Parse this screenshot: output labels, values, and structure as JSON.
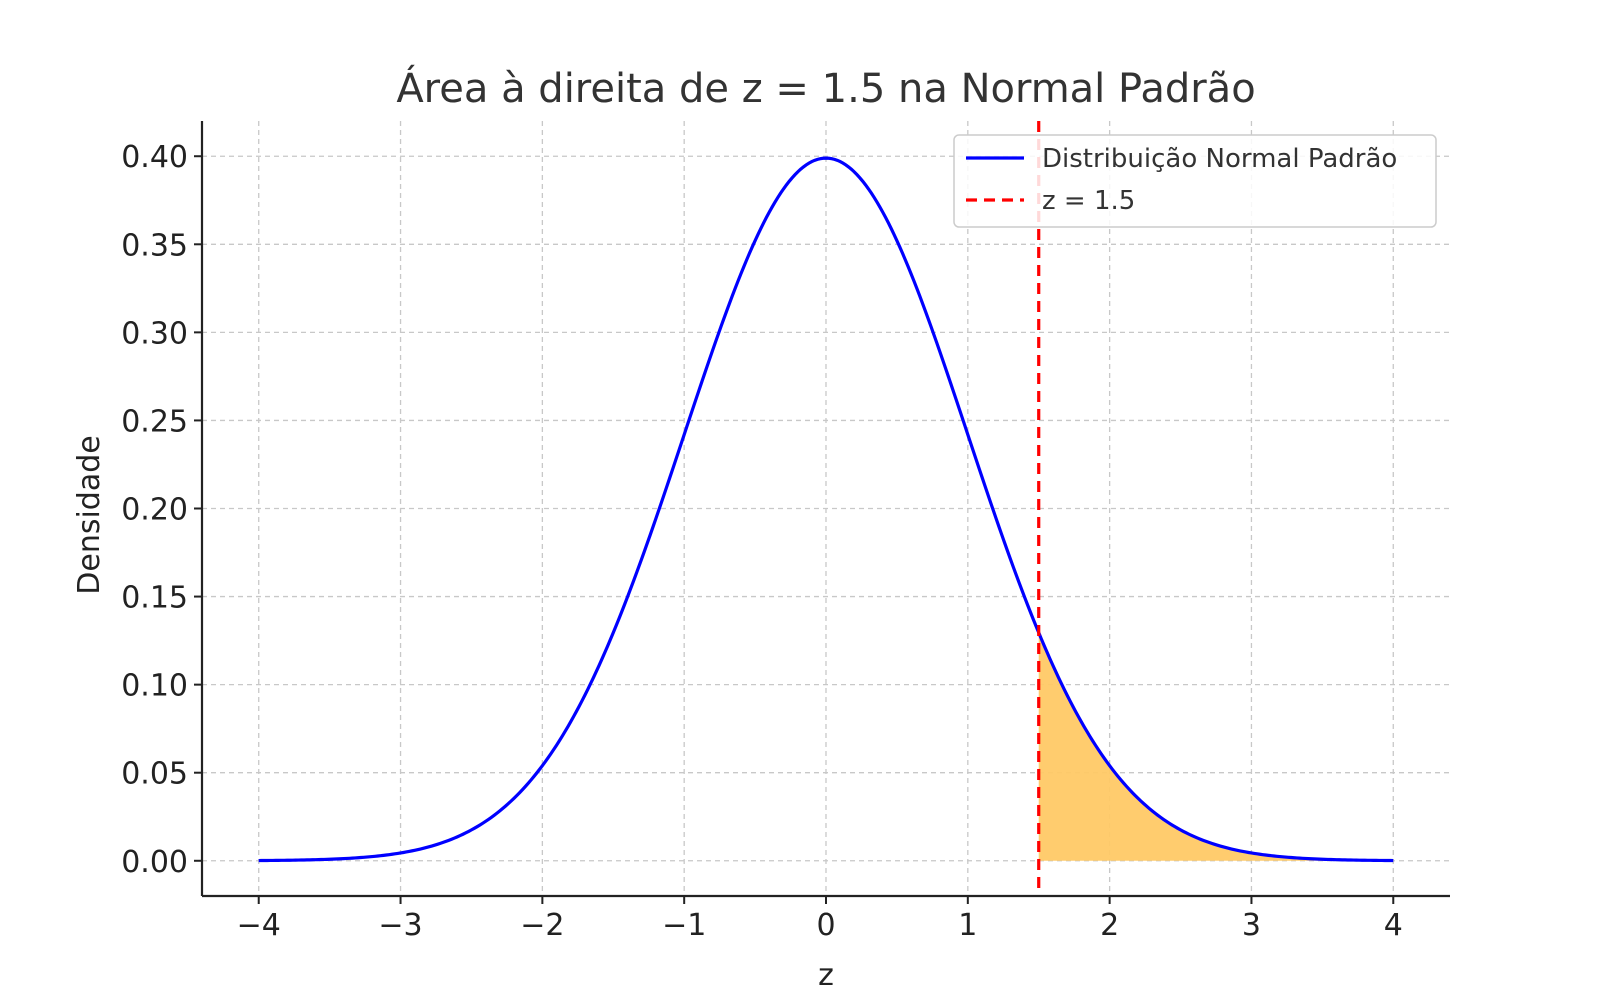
{
  "chart_data": {
    "type": "line",
    "title": "Área à direita de z = 1.5 na Normal Padrão",
    "xlabel": "z",
    "ylabel": "Densidade",
    "xlim": [
      -4.4,
      4.4
    ],
    "ylim": [
      -0.02,
      0.42
    ],
    "x_ticks": [
      -4,
      -3,
      -2,
      -1,
      0,
      1,
      2,
      3,
      4
    ],
    "x_tick_labels": [
      "−4",
      "−3",
      "−2",
      "−1",
      "0",
      "1",
      "2",
      "3",
      "4"
    ],
    "y_ticks": [
      0.0,
      0.05,
      0.1,
      0.15,
      0.2,
      0.25,
      0.3,
      0.35,
      0.4
    ],
    "y_tick_labels": [
      "0.00",
      "0.05",
      "0.10",
      "0.15",
      "0.20",
      "0.25",
      "0.30",
      "0.35",
      "0.40"
    ],
    "grid": true,
    "legend_position": "top-right",
    "series": [
      {
        "name": "Distribuição Normal Padrão",
        "color": "#0000ff",
        "x": [
          -4.0,
          -3.5,
          -3.0,
          -2.5,
          -2.0,
          -1.5,
          -1.0,
          -0.5,
          0.0,
          0.5,
          1.0,
          1.5,
          2.0,
          2.5,
          3.0,
          3.5,
          4.0
        ],
        "y": [
          0.0001,
          0.0009,
          0.0044,
          0.0175,
          0.054,
          0.1295,
          0.242,
          0.3521,
          0.3989,
          0.3521,
          0.242,
          0.1295,
          0.054,
          0.0175,
          0.0044,
          0.0009,
          0.0001
        ]
      }
    ],
    "vline": {
      "name": "z = 1.5",
      "x": 1.5,
      "color": "#ff0000",
      "style": "dashed"
    },
    "shaded_region": {
      "x_from": 1.5,
      "x_to": 4.0,
      "color": "#ffc966"
    }
  }
}
